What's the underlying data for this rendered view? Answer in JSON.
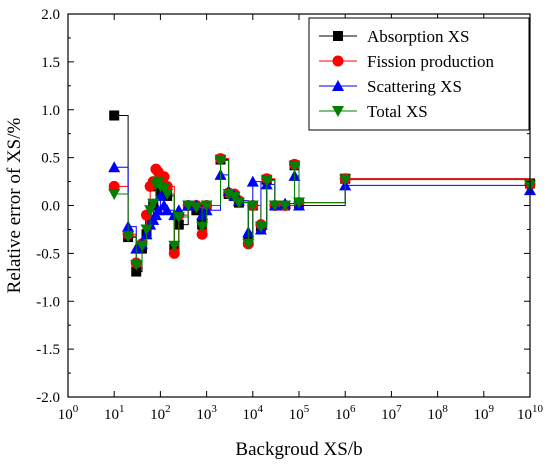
{
  "chart_data": {
    "type": "scatter",
    "title": "",
    "xlabel": "Backgroud XS/b",
    "ylabel": "Relative error of XS/%",
    "xscale": "log",
    "xlim": [
      1,
      10000000000
    ],
    "ylim": [
      -2.0,
      2.0
    ],
    "x_ticks": [
      {
        "value": 1,
        "base": "10",
        "exp": "0"
      },
      {
        "value": 10,
        "base": "10",
        "exp": "1"
      },
      {
        "value": 100,
        "base": "10",
        "exp": "2"
      },
      {
        "value": 1000,
        "base": "10",
        "exp": "3"
      },
      {
        "value": 10000,
        "base": "10",
        "exp": "4"
      },
      {
        "value": 100000,
        "base": "10",
        "exp": "5"
      },
      {
        "value": 1000000,
        "base": "10",
        "exp": "6"
      },
      {
        "value": 10000000,
        "base": "10",
        "exp": "7"
      },
      {
        "value": 100000000,
        "base": "10",
        "exp": "8"
      },
      {
        "value": 1000000000,
        "base": "10",
        "exp": "9"
      },
      {
        "value": 10000000000,
        "base": "10",
        "exp": "10"
      }
    ],
    "y_ticks": [
      {
        "value": 2.0,
        "label": "2.0"
      },
      {
        "value": 1.5,
        "label": "1.5"
      },
      {
        "value": 1.0,
        "label": "1.0"
      },
      {
        "value": 0.5,
        "label": "0.5"
      },
      {
        "value": 0.0,
        "label": "0.0"
      },
      {
        "value": -0.5,
        "label": "-0.5"
      },
      {
        "value": -1.0,
        "label": "-1.0"
      },
      {
        "value": -1.5,
        "label": "-1.5"
      },
      {
        "value": -2.0,
        "label": "-2.0"
      }
    ],
    "grid": false,
    "legend_position": "top-right",
    "series": [
      {
        "name": "Absorption XS",
        "color": "#000000",
        "marker": "square",
        "x": [
          10,
          20,
          30,
          40,
          50,
          60,
          70,
          80,
          90,
          100,
          120,
          140,
          200,
          250,
          400,
          600,
          800,
          1000,
          2000,
          3000,
          4000,
          5000,
          8000,
          10000,
          15000,
          20000,
          30000,
          50000,
          80000,
          100000,
          1000000,
          10000000000
        ],
        "y": [
          0.94,
          -0.33,
          -0.69,
          -0.45,
          -0.3,
          -0.15,
          0.0,
          0.2,
          0.22,
          0.15,
          0.15,
          0.1,
          -0.45,
          -0.2,
          0.0,
          -0.05,
          -0.2,
          0.0,
          0.48,
          0.12,
          0.1,
          0.03,
          -0.38,
          0.0,
          -0.22,
          0.27,
          0.0,
          0.0,
          0.42,
          0.03,
          0.28,
          0.23
        ]
      },
      {
        "name": "Fission production",
        "color": "#ff0000",
        "marker": "circle",
        "x": [
          10,
          20,
          30,
          40,
          50,
          60,
          70,
          80,
          90,
          100,
          120,
          140,
          200,
          250,
          400,
          600,
          800,
          1000,
          2000,
          3000,
          4000,
          5000,
          8000,
          10000,
          15000,
          20000,
          30000,
          50000,
          80000,
          100000,
          1000000,
          10000000000
        ],
        "y": [
          0.2,
          -0.3,
          -0.6,
          -0.4,
          -0.1,
          0.2,
          0.25,
          0.38,
          0.35,
          0.3,
          0.3,
          0.2,
          -0.5,
          -0.1,
          0.0,
          0.0,
          -0.3,
          0.0,
          0.49,
          0.13,
          0.12,
          0.05,
          -0.4,
          0.0,
          -0.2,
          0.28,
          0.0,
          0.0,
          0.43,
          0.03,
          0.28,
          0.22
        ]
      },
      {
        "name": "Scattering XS",
        "color": "#0000ff",
        "marker": "triangle-up",
        "x": [
          10,
          20,
          30,
          40,
          50,
          60,
          70,
          80,
          90,
          100,
          120,
          140,
          200,
          250,
          400,
          600,
          800,
          1000,
          2000,
          3000,
          4000,
          5000,
          8000,
          10000,
          15000,
          20000,
          30000,
          50000,
          80000,
          100000,
          1000000,
          10000000000
        ],
        "y": [
          0.4,
          -0.22,
          -0.45,
          -0.4,
          -0.3,
          -0.2,
          -0.15,
          -0.1,
          -0.05,
          0.1,
          0.0,
          -0.05,
          -0.1,
          -0.05,
          0.0,
          0.0,
          -0.1,
          -0.05,
          0.32,
          0.15,
          0.1,
          0.05,
          -0.28,
          0.25,
          -0.25,
          0.22,
          0.0,
          0.02,
          0.31,
          0.0,
          0.21,
          0.16
        ]
      },
      {
        "name": "Total XS",
        "color": "#008000",
        "marker": "triangle-down",
        "x": [
          10,
          20,
          30,
          40,
          50,
          60,
          70,
          80,
          90,
          100,
          120,
          140,
          200,
          250,
          400,
          600,
          800,
          1000,
          2000,
          3000,
          4000,
          5000,
          8000,
          10000,
          15000,
          20000,
          30000,
          50000,
          80000,
          100000,
          1000000,
          10000000000
        ],
        "y": [
          0.12,
          -0.32,
          -0.62,
          -0.42,
          -0.25,
          -0.05,
          0.02,
          0.22,
          0.25,
          0.2,
          0.18,
          0.12,
          -0.42,
          -0.12,
          0.0,
          -0.02,
          -0.22,
          0.0,
          0.47,
          0.12,
          0.09,
          0.03,
          -0.4,
          0.0,
          -0.22,
          0.26,
          0.0,
          0.0,
          0.41,
          0.03,
          0.27,
          0.21
        ]
      }
    ]
  }
}
